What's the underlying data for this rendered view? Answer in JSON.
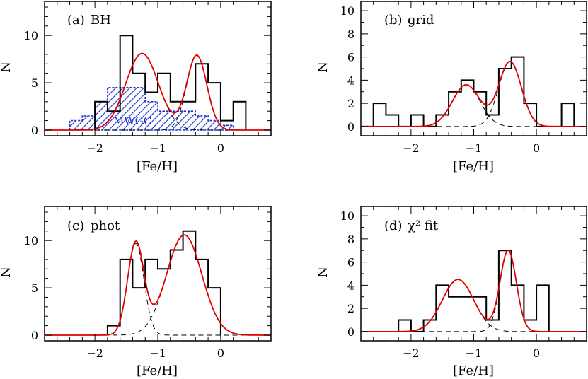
{
  "chart_data": [
    {
      "id": "a",
      "type": "histogram",
      "panel_label": "(a)",
      "title": "BH",
      "xlabel": "[Fe/H]",
      "ylabel": "N",
      "xlim": [
        -2.8,
        0.8
      ],
      "ylim": [
        -0.6,
        13.6
      ],
      "xticks": [
        -2,
        -1,
        0
      ],
      "xtick_labels": [
        "−2",
        "−1",
        "0"
      ],
      "yticks": [
        0,
        5,
        10
      ],
      "ytick_labels": [
        "0",
        "5",
        "10"
      ],
      "colors": {
        "histogram": "#000000",
        "fit": "#e00000",
        "components": "#000000",
        "reference": "#1a33cc"
      },
      "histogram": {
        "bin_edges": [
          -2.0,
          -1.8,
          -1.6,
          -1.4,
          -1.2,
          -1.0,
          -0.8,
          -0.6,
          -0.4,
          -0.2,
          0.0,
          0.2,
          0.4
        ],
        "counts": [
          3,
          2,
          10,
          6,
          4,
          6,
          3,
          3,
          7,
          5,
          1,
          3
        ]
      },
      "reference_histogram": {
        "label": "MWGC",
        "bin_edges": [
          -2.4,
          -2.2,
          -2.0,
          -1.8,
          -1.6,
          -1.4,
          -1.2,
          -1.0,
          -0.8,
          -0.6,
          -0.4,
          -0.2,
          0.0,
          0.2
        ],
        "counts": [
          1.0,
          1.5,
          3.0,
          4.5,
          4.5,
          4.5,
          3.0,
          2.0,
          2.0,
          2.0,
          1.5,
          1.0,
          0.5
        ]
      },
      "gaussian_components": [
        {
          "mu": -1.25,
          "sigma": 0.26,
          "amp": 8.1
        },
        {
          "mu": -0.38,
          "sigma": 0.16,
          "amp": 7.9
        }
      ]
    },
    {
      "id": "b",
      "type": "histogram",
      "panel_label": "(b)",
      "title": "grid",
      "xlabel": "[Fe/H]",
      "ylabel": "N",
      "xlim": [
        -2.8,
        0.8
      ],
      "ylim": [
        -0.8,
        10.8
      ],
      "xticks": [
        -2,
        -1,
        0
      ],
      "xtick_labels": [
        "−2",
        "−1",
        "0"
      ],
      "yticks": [
        0,
        2,
        4,
        6,
        8,
        10
      ],
      "ytick_labels": [
        "0",
        "2",
        "4",
        "6",
        "8",
        "10"
      ],
      "colors": {
        "histogram": "#000000",
        "fit": "#e00000",
        "components": "#000000"
      },
      "histogram": {
        "bin_edges": [
          -2.8,
          -2.6,
          -2.4,
          -2.2,
          -2.0,
          -1.8,
          -1.6,
          -1.4,
          -1.2,
          -1.0,
          -0.8,
          -0.6,
          -0.4,
          -0.2,
          0.0,
          0.2,
          0.4,
          0.6
        ],
        "counts": [
          0,
          2,
          1,
          0,
          1,
          0,
          1,
          3,
          4,
          3,
          1,
          5,
          6,
          2,
          0,
          0,
          2
        ]
      },
      "gaussian_components": [
        {
          "mu": -1.12,
          "sigma": 0.22,
          "amp": 3.6
        },
        {
          "mu": -0.42,
          "sigma": 0.18,
          "amp": 5.6
        }
      ]
    },
    {
      "id": "c",
      "type": "histogram",
      "panel_label": "(c)",
      "title": "phot",
      "xlabel": "[Fe/H]",
      "ylabel": "N",
      "xlim": [
        -2.8,
        0.8
      ],
      "ylim": [
        -0.6,
        13.6
      ],
      "xticks": [
        -2,
        -1,
        0
      ],
      "xtick_labels": [
        "−2",
        "−1",
        "0"
      ],
      "yticks": [
        0,
        5,
        10
      ],
      "ytick_labels": [
        "0",
        "5",
        "10"
      ],
      "colors": {
        "histogram": "#000000",
        "fit": "#e00000",
        "components": "#000000"
      },
      "histogram": {
        "bin_edges": [
          -1.8,
          -1.6,
          -1.4,
          -1.2,
          -1.0,
          -0.8,
          -0.6,
          -0.4,
          -0.2,
          0.0
        ],
        "counts": [
          1,
          8,
          5,
          8,
          7,
          9,
          11,
          8,
          5
        ]
      },
      "gaussian_components": [
        {
          "mu": -1.35,
          "sigma": 0.13,
          "amp": 9.7
        },
        {
          "mu": -0.58,
          "sigma": 0.28,
          "amp": 10.6
        }
      ]
    },
    {
      "id": "d",
      "type": "histogram",
      "panel_label": "(d)",
      "title": "χ² fit",
      "xlabel": "[Fe/H]",
      "ylabel": "N",
      "xlim": [
        -2.8,
        0.8
      ],
      "ylim": [
        -0.8,
        10.8
      ],
      "xticks": [
        -2,
        -1,
        0
      ],
      "xtick_labels": [
        "−2",
        "−1",
        "0"
      ],
      "yticks": [
        0,
        2,
        4,
        6,
        8,
        10
      ],
      "ytick_labels": [
        "0",
        "2",
        "4",
        "6",
        "8",
        "10"
      ],
      "colors": {
        "histogram": "#000000",
        "fit": "#e00000",
        "components": "#000000"
      },
      "histogram": {
        "bin_edges": [
          -2.2,
          -2.0,
          -1.8,
          -1.6,
          -1.4,
          -1.2,
          -1.0,
          -0.8,
          -0.6,
          -0.4,
          -0.2,
          0.0,
          0.2
        ],
        "counts": [
          1,
          0,
          1,
          4,
          3,
          3,
          3,
          1,
          7,
          4,
          1,
          4
        ]
      },
      "gaussian_components": [
        {
          "mu": -1.25,
          "sigma": 0.25,
          "amp": 4.5
        },
        {
          "mu": -0.45,
          "sigma": 0.13,
          "amp": 7.0
        }
      ]
    }
  ]
}
